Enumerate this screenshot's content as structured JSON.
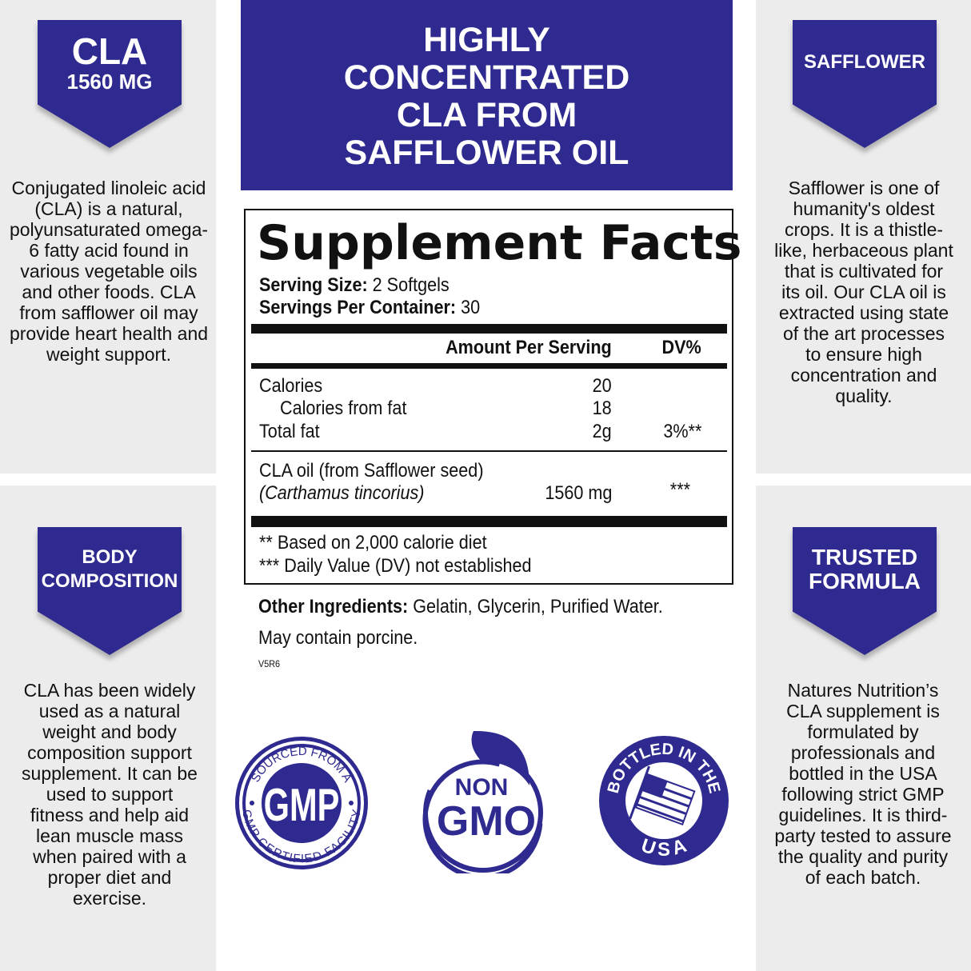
{
  "accent": "#2e2a8f",
  "header": {
    "lines": [
      "HIGHLY",
      "CONCENTRATED",
      "CLA FROM",
      "SAFFLOWER OIL"
    ]
  },
  "left_top": {
    "banner_title": "CLA",
    "banner_sub": "1560 MG",
    "text": "Conjugated linoleic acid (CLA) is a natural, polyunsaturated omega-6 fatty acid found in various vegetable oils and other foods. CLA from safflower oil may provide heart health and weight support."
  },
  "left_bottom": {
    "banner_lines": [
      "BODY",
      "COMPOSITION"
    ],
    "text": "CLA has been widely used as a natural weight and body composition support supplement. It can be used to support fitness and help aid lean muscle mass when paired with a proper diet and exercise."
  },
  "right_top": {
    "banner_title": "SAFFLOWER",
    "text": "Safflower is one of humanity's oldest crops. It is a thistle-like, herbaceous plant that is cultivated for its oil. Our CLA oil is extracted using state of the art processes to ensure high concentration and quality."
  },
  "right_bottom": {
    "banner_lines": [
      "TRUSTED",
      "FORMULA"
    ],
    "text": "Natures Nutrition’s CLA supplement is formulated by professionals and bottled in the USA following strict GMP guidelines. It is third-party tested to assure the quality and purity of each batch."
  },
  "facts": {
    "title": "Supplement Facts",
    "serving_size_label": "Serving Size:",
    "serving_size": "2 Softgels",
    "servings_label": "Servings Per Container:",
    "servings": "30",
    "col_amount": "Amount Per Serving",
    "col_dv": "DV%",
    "rows": [
      {
        "name": "Calories",
        "amount": "20",
        "dv": ""
      },
      {
        "name": "Calories from fat",
        "amount": "18",
        "dv": ""
      },
      {
        "name": "Total fat",
        "amount": "2g",
        "dv": "3%**"
      }
    ],
    "cla": {
      "name": "CLA oil (from Safflower seed)",
      "latin": "(Carthamus tincorius)",
      "amount": "1560 mg",
      "dv": "***"
    },
    "footnotes": [
      "** Based on 2,000 calorie diet",
      "*** Daily Value (DV) not established"
    ]
  },
  "other": {
    "label": "Other Ingredients:",
    "value": "Gelatin, Glycerin, Purified Water.",
    "line2": "May contain porcine.",
    "code": "V5R6"
  },
  "badges": {
    "gmp": {
      "top": "SOURCED FROM A",
      "center": "GMP",
      "bottom": "GMP CERTIFIED FACILITY"
    },
    "nongmo": {
      "line1": "NON",
      "line2": "GMO"
    },
    "usa": {
      "top": "BOTTLED IN THE",
      "bottom": "USA"
    }
  }
}
